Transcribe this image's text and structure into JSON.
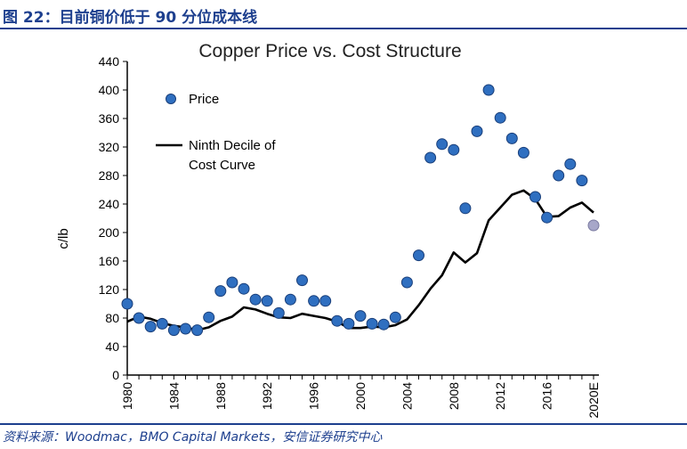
{
  "figure": {
    "label": "图 22：目前铜价低于 90 分位成本线",
    "source": "资料来源：Woodmac，BMO Capital Markets，安信证券研究中心"
  },
  "colors": {
    "header": "#1d3f8e",
    "price_marker": "#2f6fc0",
    "price_marker_edge": "#1a3f7a",
    "estimate_marker": "#a7a7c9",
    "cost_line": "#000000",
    "axis": "#000000"
  },
  "chart_data": {
    "type": "scatter+line",
    "title": "Copper Price vs. Cost Structure",
    "ylabel": "c/lb",
    "xlabel": "",
    "ylim": [
      0,
      440
    ],
    "yticks": [
      0,
      40,
      80,
      120,
      160,
      200,
      240,
      280,
      320,
      360,
      400,
      440
    ],
    "xlim": [
      1980,
      2020
    ],
    "xtick_labels": [
      "1980",
      "1984",
      "1988",
      "1992",
      "1996",
      "2000",
      "2004",
      "2008",
      "2012",
      "2016",
      "2020E"
    ],
    "xtick_values": [
      1980,
      1984,
      1988,
      1992,
      1996,
      2000,
      2004,
      2008,
      2012,
      2016,
      2020
    ],
    "grid": false,
    "legend_position": "top-left",
    "series": [
      {
        "name": "Price",
        "kind": "scatter",
        "x": [
          1980,
          1981,
          1982,
          1983,
          1984,
          1985,
          1986,
          1987,
          1988,
          1989,
          1990,
          1991,
          1992,
          1993,
          1994,
          1995,
          1996,
          1997,
          1998,
          1999,
          2000,
          2001,
          2002,
          2003,
          2004,
          2005,
          2006,
          2007,
          2008,
          2009,
          2010,
          2011,
          2012,
          2013,
          2014,
          2015,
          2016,
          2017,
          2018,
          2019
        ],
        "y": [
          100,
          80,
          68,
          72,
          63,
          65,
          63,
          81,
          118,
          130,
          121,
          106,
          104,
          87,
          106,
          133,
          104,
          104,
          76,
          72,
          83,
          72,
          71,
          81,
          130,
          168,
          305,
          324,
          316,
          234,
          342,
          400,
          361,
          332,
          312,
          250,
          221,
          280,
          296,
          273
        ]
      },
      {
        "name": "Price (2020E)",
        "kind": "scatter-estimate",
        "x": [
          2020
        ],
        "y": [
          210
        ]
      },
      {
        "name": "Ninth Decile of Cost Curve",
        "kind": "line",
        "x": [
          1980,
          1981,
          1982,
          1983,
          1984,
          1985,
          1986,
          1987,
          1988,
          1989,
          1990,
          1991,
          1992,
          1993,
          1994,
          1995,
          1996,
          1997,
          1998,
          1999,
          2000,
          2001,
          2002,
          2003,
          2004,
          2005,
          2006,
          2007,
          2008,
          2009,
          2010,
          2011,
          2012,
          2013,
          2014,
          2015,
          2016,
          2017,
          2018,
          2019,
          2020
        ],
        "y": [
          75,
          82,
          79,
          73,
          69,
          67,
          63,
          67,
          76,
          82,
          95,
          92,
          86,
          81,
          80,
          86,
          83,
          80,
          75,
          66,
          66,
          68,
          67,
          70,
          78,
          98,
          121,
          140,
          172,
          158,
          171,
          217,
          235,
          253,
          259,
          247,
          222,
          223,
          235,
          242,
          228
        ]
      }
    ],
    "legend": {
      "price_label": "Price",
      "line_label_1": "Ninth Decile of",
      "line_label_2": "Cost Curve"
    }
  }
}
